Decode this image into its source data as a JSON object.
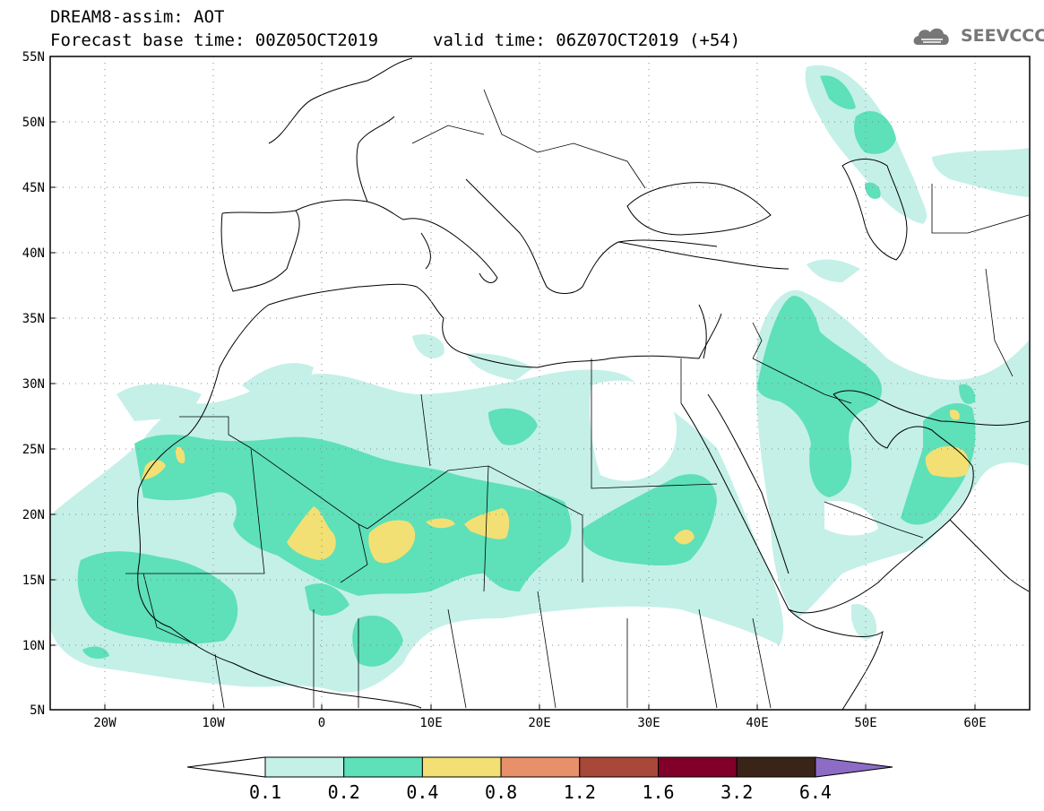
{
  "header": {
    "title": "DREAM8-assim: AOT",
    "base_time": "Forecast base time: 00Z05OCT2019",
    "valid_time": "valid time: 06Z07OCT2019 (+54)"
  },
  "logo": {
    "text": "SEEVCCC",
    "icon": "cloud-icon"
  },
  "map": {
    "lat_labels": [
      "55N",
      "50N",
      "45N",
      "40N",
      "35N",
      "30N",
      "25N",
      "20N",
      "15N",
      "10N",
      "5N"
    ],
    "lon_labels": [
      "20W",
      "10W",
      "0",
      "10E",
      "20E",
      "30E",
      "40E",
      "50E",
      "60E"
    ]
  },
  "colorbar": {
    "labels": [
      "0.1",
      "0.2",
      "0.4",
      "0.8",
      "1.2",
      "1.6",
      "3.2",
      "6.4"
    ],
    "colors": {
      "under": "#ffffff",
      "c1": "#c4f0e8",
      "c2": "#5ee0b8",
      "c3": "#f2e074",
      "c4": "#e8906a",
      "c5": "#a84838",
      "c6": "#80002a",
      "c7": "#3a2418",
      "over": "#8c6cc4"
    }
  }
}
